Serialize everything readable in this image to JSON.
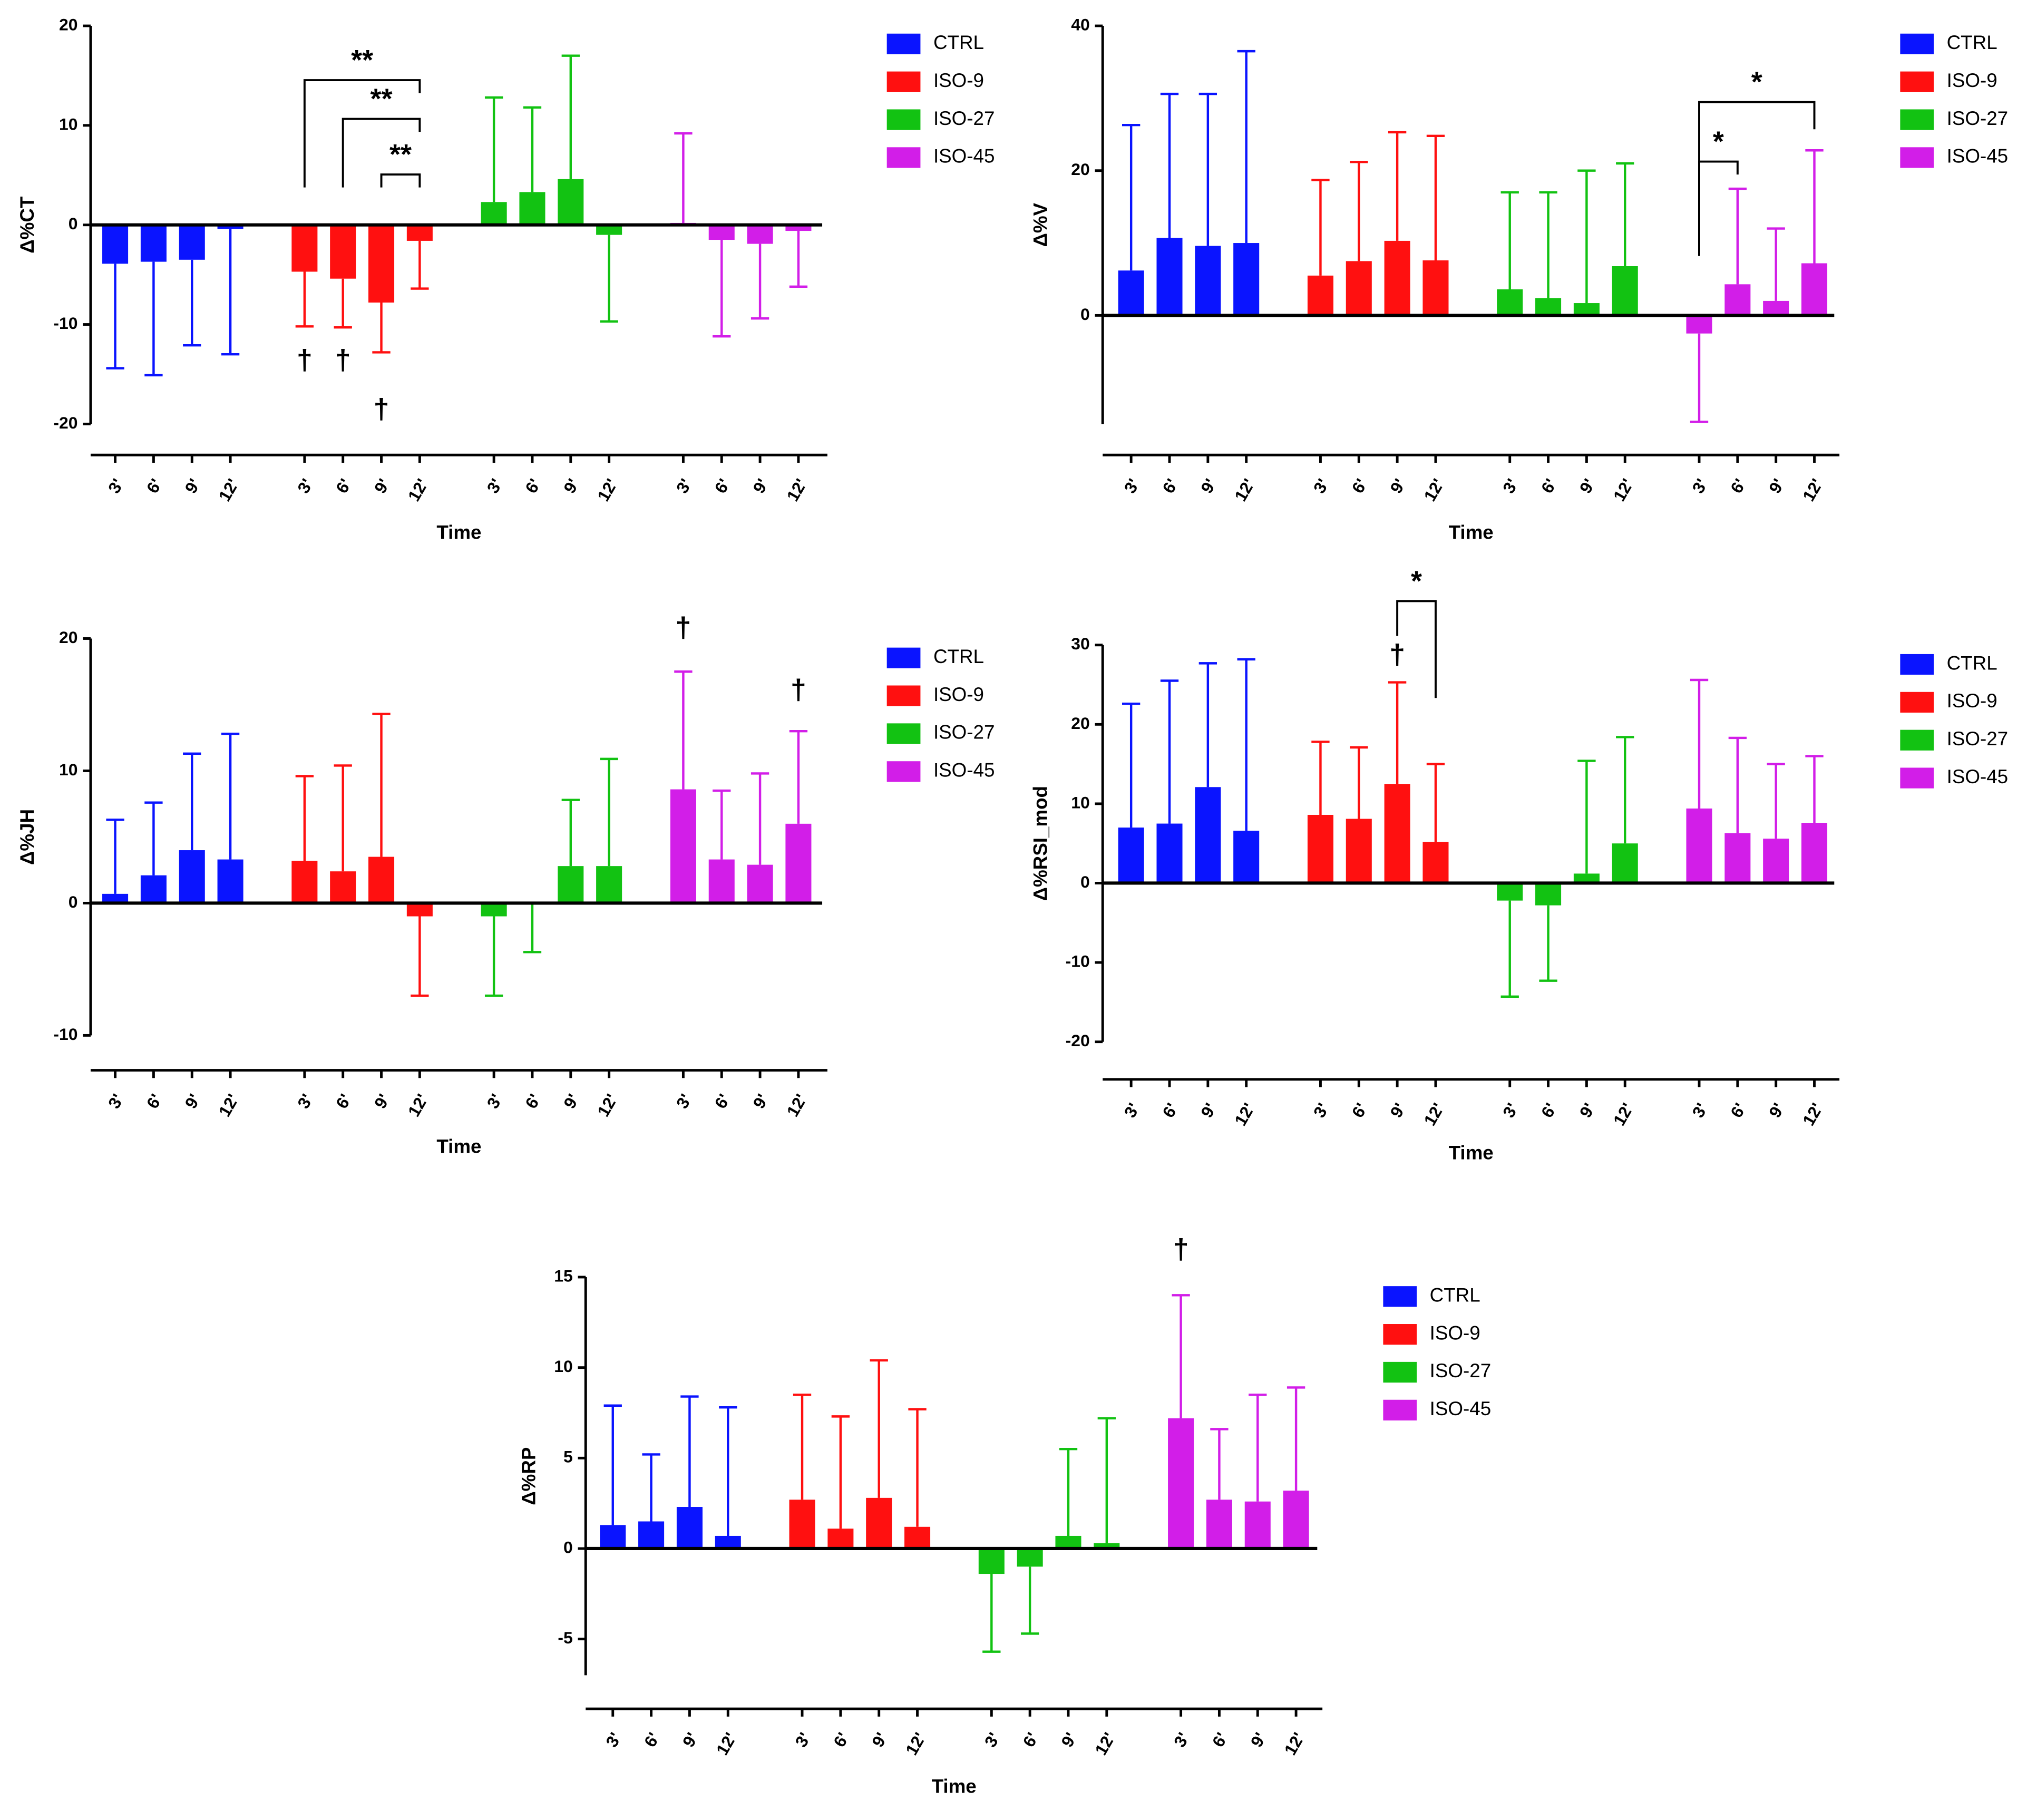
{
  "chart_data": [
    {
      "type": "bar",
      "y_label": "Δ%CT",
      "x_label": "Time",
      "categories": [
        "3'",
        "6'",
        "9'",
        "12'"
      ],
      "ylim": [
        -20,
        20
      ],
      "yticks": [
        -20,
        -10,
        0,
        10,
        20
      ],
      "series": [
        {
          "name": "CTRL",
          "color": "#0a14ff",
          "values": [
            -3.9,
            -3.7,
            -3.5,
            -0.4
          ],
          "errors": [
            10.5,
            11.4,
            8.6,
            12.6
          ]
        },
        {
          "name": "ISO-9",
          "color": "#ff1010",
          "values": [
            -4.7,
            -5.4,
            -7.8,
            -1.6
          ],
          "errors": [
            5.5,
            4.9,
            5.0,
            4.8
          ]
        },
        {
          "name": "ISO-27",
          "color": "#12c212",
          "values": [
            2.3,
            3.3,
            4.6,
            -1.0
          ],
          "errors": [
            10.5,
            8.5,
            12.4,
            8.7
          ]
        },
        {
          "name": "ISO-45",
          "color": "#d21ee8",
          "values": [
            0.2,
            -1.5,
            -1.9,
            -0.6
          ],
          "errors": [
            9.0,
            9.7,
            7.5,
            5.6
          ]
        }
      ],
      "annotations": [
        "**",
        "**",
        "**",
        "†",
        "†",
        "†"
      ]
    },
    {
      "type": "bar",
      "y_label": "Δ%V",
      "x_label": "Time",
      "categories": [
        "3'",
        "6'",
        "9'",
        "12'"
      ],
      "ylim": [
        -15,
        40
      ],
      "yticks": [
        0,
        20,
        40
      ],
      "series": [
        {
          "name": "CTRL",
          "color": "#0a14ff",
          "values": [
            6.2,
            10.7,
            9.6,
            10.0
          ],
          "errors": [
            20.1,
            19.9,
            21.0,
            26.5
          ]
        },
        {
          "name": "ISO-9",
          "color": "#ff1010",
          "values": [
            5.5,
            7.5,
            10.3,
            7.6
          ],
          "errors": [
            13.2,
            13.7,
            15.0,
            17.2
          ]
        },
        {
          "name": "ISO-27",
          "color": "#12c212",
          "values": [
            3.6,
            2.4,
            1.7,
            6.8
          ],
          "errors": [
            13.4,
            14.6,
            18.3,
            14.2
          ]
        },
        {
          "name": "ISO-45",
          "color": "#d21ee8",
          "values": [
            -2.5,
            4.3,
            2.0,
            7.2
          ],
          "errors": [
            12.2,
            13.2,
            10.0,
            15.6
          ]
        }
      ],
      "annotations": [
        "*",
        "*"
      ]
    },
    {
      "type": "bar",
      "y_label": "Δ%JH",
      "x_label": "Time",
      "categories": [
        "3'",
        "6'",
        "9'",
        "12'"
      ],
      "ylim": [
        -10,
        20
      ],
      "yticks": [
        -10,
        0,
        10,
        20
      ],
      "series": [
        {
          "name": "CTRL",
          "color": "#0a14ff",
          "values": [
            0.7,
            2.1,
            4.0,
            3.3
          ],
          "errors": [
            5.6,
            5.5,
            7.3,
            9.5
          ]
        },
        {
          "name": "ISO-9",
          "color": "#ff1010",
          "values": [
            3.2,
            2.4,
            3.5,
            -1.0
          ],
          "errors": [
            6.4,
            8.0,
            10.8,
            6.0
          ]
        },
        {
          "name": "ISO-27",
          "color": "#12c212",
          "values": [
            -1.0,
            -0.1,
            2.8,
            2.8
          ],
          "errors": [
            6.0,
            3.6,
            5.0,
            8.1
          ]
        },
        {
          "name": "ISO-45",
          "color": "#d21ee8",
          "values": [
            8.6,
            3.3,
            2.9,
            6.0
          ],
          "errors": [
            8.9,
            5.2,
            6.9,
            7.0
          ]
        }
      ],
      "annotations": [
        "†",
        "†"
      ]
    },
    {
      "type": "bar",
      "y_label": "Δ%RSI_mod",
      "x_label": "Time",
      "categories": [
        "3'",
        "6'",
        "9'",
        "12'"
      ],
      "ylim": [
        -20,
        30
      ],
      "yticks": [
        -20,
        -10,
        0,
        10,
        20,
        30
      ],
      "series": [
        {
          "name": "CTRL",
          "color": "#0a14ff",
          "values": [
            7.0,
            7.5,
            12.1,
            6.6
          ],
          "errors": [
            15.6,
            18.0,
            15.6,
            21.6
          ]
        },
        {
          "name": "ISO-9",
          "color": "#ff1010",
          "values": [
            8.6,
            8.1,
            12.5,
            5.2
          ],
          "errors": [
            9.2,
            9.0,
            12.8,
            9.8
          ]
        },
        {
          "name": "ISO-27",
          "color": "#12c212",
          "values": [
            -2.2,
            -2.8,
            1.2,
            5.0
          ],
          "errors": [
            12.1,
            9.5,
            14.2,
            13.4
          ]
        },
        {
          "name": "ISO-45",
          "color": "#d21ee8",
          "values": [
            9.4,
            6.3,
            5.6,
            7.6
          ],
          "errors": [
            16.2,
            12.0,
            9.4,
            8.4
          ]
        }
      ],
      "annotations": [
        "*",
        "†"
      ]
    },
    {
      "type": "bar",
      "y_label": "Δ%RP",
      "x_label": "Time",
      "categories": [
        "3'",
        "6'",
        "9'",
        "12'"
      ],
      "ylim": [
        -7,
        15
      ],
      "yticks": [
        -5,
        0,
        5,
        10,
        15
      ],
      "series": [
        {
          "name": "CTRL",
          "color": "#0a14ff",
          "values": [
            1.3,
            1.5,
            2.3,
            0.7
          ],
          "errors": [
            6.6,
            3.7,
            6.1,
            7.1
          ]
        },
        {
          "name": "ISO-9",
          "color": "#ff1010",
          "values": [
            2.7,
            1.1,
            2.8,
            1.2
          ],
          "errors": [
            5.8,
            6.2,
            7.6,
            6.5
          ]
        },
        {
          "name": "ISO-27",
          "color": "#12c212",
          "values": [
            -1.4,
            -1.0,
            0.7,
            0.3
          ],
          "errors": [
            4.3,
            3.7,
            4.8,
            6.9
          ]
        },
        {
          "name": "ISO-45",
          "color": "#d21ee8",
          "values": [
            7.2,
            2.7,
            2.6,
            3.2
          ],
          "errors": [
            6.8,
            3.9,
            5.9,
            5.7
          ]
        }
      ],
      "annotations": [
        "†"
      ]
    }
  ]
}
